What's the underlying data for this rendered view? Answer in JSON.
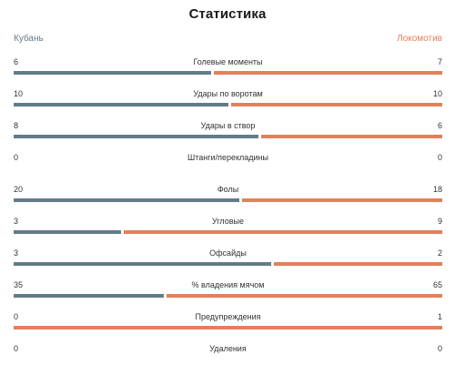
{
  "header": {
    "title": "Статистика",
    "team_home": "Кубань",
    "team_away": "Локомотив"
  },
  "colors": {
    "home": "#627b88",
    "away": "#e2805b"
  },
  "stats": [
    {
      "label": "Голевые моменты",
      "home": "6",
      "away": "7"
    },
    {
      "label": "Удары по воротам",
      "home": "10",
      "away": "10"
    },
    {
      "label": "Удары в створ",
      "home": "8",
      "away": "6"
    },
    {
      "label": "Штанги/перекладины",
      "home": "0",
      "away": "0"
    },
    {
      "label": "Фолы",
      "home": "20",
      "away": "18"
    },
    {
      "label": "Угловые",
      "home": "3",
      "away": "9"
    },
    {
      "label": "Офсайды",
      "home": "3",
      "away": "2"
    },
    {
      "label": "% владения мячом",
      "home": "35",
      "away": "65"
    },
    {
      "label": "Предупреждения",
      "home": "0",
      "away": "1"
    },
    {
      "label": "Удаления",
      "home": "0",
      "away": "0"
    }
  ]
}
